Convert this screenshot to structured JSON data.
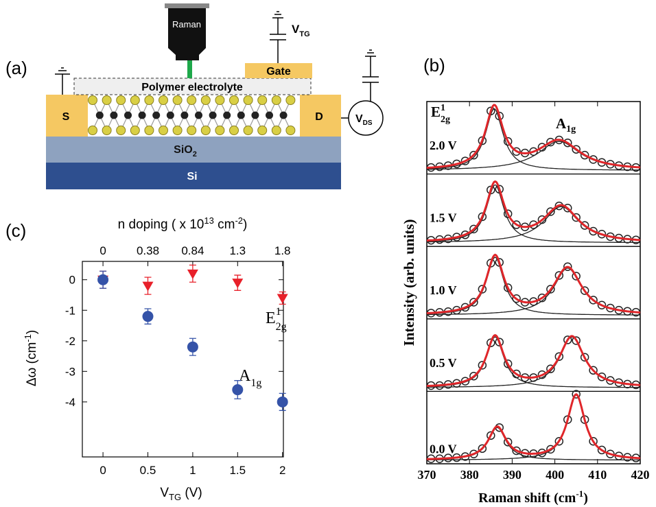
{
  "diagram": {
    "panel_label": "(a)",
    "microscope": "Raman",
    "gate_voltage": [
      "V",
      "TG"
    ],
    "gate": "Gate",
    "electrolyte": "Polymer electrolyte",
    "source": "S",
    "drain": "D",
    "ds_voltage": [
      "V",
      "DS"
    ],
    "oxide": [
      "SiO",
      "2"
    ],
    "substrate": "Si"
  },
  "chart_data": [
    {
      "type": "scatter",
      "panel_label": "(c)",
      "xlabel": [
        "V",
        "TG",
        " (V)"
      ],
      "ylabel": [
        "Δω (cm",
        "-1",
        ")"
      ],
      "x2label": [
        "n doping ( x 10",
        "13",
        " cm",
        "-2",
        ")"
      ],
      "x": [
        0,
        0.5,
        1,
        1.5,
        2
      ],
      "xlim": [
        -0.23,
        2.01
      ],
      "xticks": [
        0,
        0.5,
        1,
        1.5,
        2
      ],
      "x2ticks": [
        {
          "value": 0,
          "label": "0"
        },
        {
          "value": 0.5,
          "label": "0.38"
        },
        {
          "value": 1,
          "label": "0.84"
        },
        {
          "value": 1.5,
          "label": "1.3"
        },
        {
          "value": 2,
          "label": "1.8"
        }
      ],
      "ylim": [
        -5.8,
        0.6
      ],
      "yticks": [
        0,
        -1,
        -2,
        -3,
        -4
      ],
      "series": [
        {
          "name": [
            "E",
            "1",
            "2g"
          ],
          "color": "#e8202a",
          "marker": "triangle",
          "values": [
            0,
            -0.2,
            0.2,
            -0.1,
            -0.6
          ],
          "errors": [
            0.28,
            0.28,
            0.28,
            0.25,
            0.2
          ]
        },
        {
          "name": [
            "A",
            "1g"
          ],
          "color": "#3553a8",
          "marker": "circle",
          "values": [
            0,
            -1.2,
            -2.2,
            -3.6,
            -4.0
          ],
          "errors": [
            0.28,
            0.25,
            0.28,
            0.3,
            0.28
          ]
        }
      ]
    },
    {
      "type": "spectra",
      "panel_label": "(b)",
      "xlabel": [
        "Raman shift (cm",
        "-1",
        ")"
      ],
      "ylabel": "Intensity (arb. units)",
      "xlim": [
        370,
        420
      ],
      "xticks": [
        370,
        380,
        390,
        400,
        410,
        420
      ],
      "ylim": [
        -0.05,
        0.95
      ],
      "peak_labels": [
        [
          "E",
          "1",
          "2g"
        ],
        [
          "A",
          "1g"
        ]
      ],
      "fit_color": "#e0262a",
      "component_color": "#222222",
      "x": [
        371,
        373,
        375,
        377,
        379,
        381,
        383,
        385,
        387,
        389,
        391,
        393,
        395,
        397,
        399,
        401,
        403,
        405,
        407,
        409,
        411,
        413,
        415,
        417,
        419
      ],
      "series": [
        {
          "name": "2.0 V",
          "values": [
            0.04,
            0.05,
            0.065,
            0.09,
            0.13,
            0.21,
            0.41,
            0.82,
            0.75,
            0.4,
            0.26,
            0.24,
            0.26,
            0.32,
            0.39,
            0.42,
            0.38,
            0.29,
            0.21,
            0.15,
            0.11,
            0.085,
            0.065,
            0.05,
            0.04
          ],
          "peaks": [
            {
              "center": 385.8,
              "width": 5,
              "height": 0.85
            },
            {
              "center": 401,
              "width": 12,
              "height": 0.4
            }
          ]
        },
        {
          "name": "1.5 V",
          "values": [
            0.035,
            0.045,
            0.055,
            0.08,
            0.11,
            0.19,
            0.36,
            0.73,
            0.74,
            0.4,
            0.25,
            0.22,
            0.25,
            0.32,
            0.43,
            0.51,
            0.48,
            0.35,
            0.24,
            0.16,
            0.12,
            0.085,
            0.065,
            0.05,
            0.04
          ],
          "peaks": [
            {
              "center": 386,
              "width": 5,
              "height": 0.8
            },
            {
              "center": 401.5,
              "width": 10,
              "height": 0.5
            }
          ]
        },
        {
          "name": "1.0 V",
          "values": [
            0.03,
            0.04,
            0.05,
            0.07,
            0.11,
            0.18,
            0.36,
            0.72,
            0.73,
            0.38,
            0.23,
            0.18,
            0.19,
            0.24,
            0.36,
            0.55,
            0.67,
            0.54,
            0.34,
            0.21,
            0.14,
            0.1,
            0.07,
            0.055,
            0.042
          ],
          "peaks": [
            {
              "center": 386,
              "width": 5,
              "height": 0.8
            },
            {
              "center": 403,
              "width": 8,
              "height": 0.65
            }
          ]
        },
        {
          "name": "0.5 V",
          "values": [
            0.03,
            0.03,
            0.045,
            0.06,
            0.09,
            0.16,
            0.31,
            0.62,
            0.63,
            0.33,
            0.19,
            0.14,
            0.14,
            0.18,
            0.26,
            0.43,
            0.66,
            0.65,
            0.42,
            0.24,
            0.15,
            0.1,
            0.07,
            0.05,
            0.04
          ],
          "peaks": [
            {
              "center": 386,
              "width": 5,
              "height": 0.7
            },
            {
              "center": 404,
              "width": 7,
              "height": 0.7
            }
          ]
        },
        {
          "name": "0.0 V",
          "values": [
            0.02,
            0.02,
            0.03,
            0.035,
            0.05,
            0.085,
            0.16,
            0.34,
            0.45,
            0.25,
            0.13,
            0.095,
            0.09,
            0.1,
            0.15,
            0.26,
            0.56,
            0.91,
            0.56,
            0.26,
            0.14,
            0.085,
            0.058,
            0.04,
            0.03
          ],
          "peaks": [
            {
              "center": 386.5,
              "width": 5,
              "height": 0.45
            },
            {
              "center": 405,
              "width": 5,
              "height": 0.9
            }
          ]
        }
      ]
    }
  ]
}
